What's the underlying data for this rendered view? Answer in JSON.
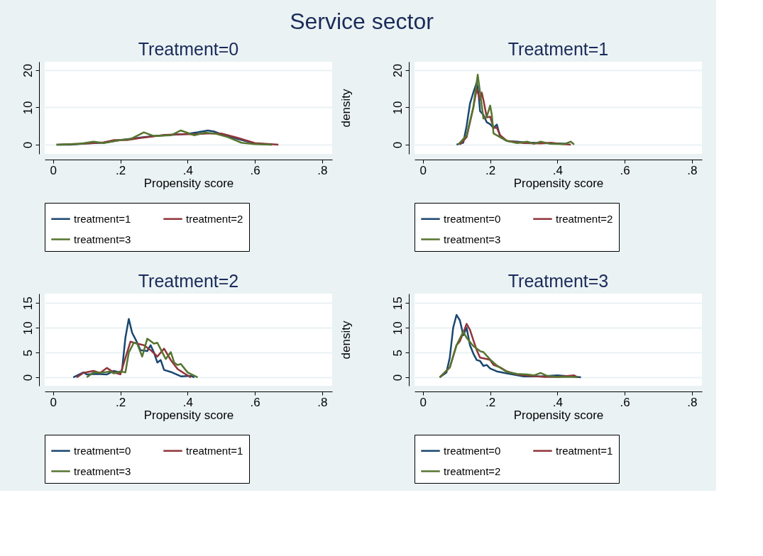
{
  "chart_data": [
    {
      "type": "other",
      "title": "Service sector"
    },
    {
      "type": "line",
      "title": "Treatment=0",
      "xlabel": "Propensity score",
      "xlim": [
        -0.025,
        0.83
      ],
      "xticks": [
        {
          "value": 0,
          "label": "0"
        },
        {
          "value": 0.2,
          "label": ".2"
        },
        {
          "value": 0.4,
          "label": ".4"
        },
        {
          "value": 0.6,
          "label": ".6"
        },
        {
          "value": 0.8,
          "label": ".8"
        }
      ],
      "ylim": [
        -2.5,
        22.3
      ],
      "yticks": [
        0,
        10,
        20
      ],
      "grid": "y",
      "legend": "bottom",
      "marker": "none",
      "line_style": "solid",
      "series": [
        {
          "name": "treatment=1",
          "color": "#1a476f",
          "x": [
            0.01,
            0.05,
            0.1,
            0.15,
            0.2,
            0.25,
            0.3,
            0.35,
            0.4,
            0.43,
            0.46,
            0.48,
            0.5,
            0.55,
            0.6,
            0.65
          ],
          "values": [
            0,
            0,
            0.3,
            0.5,
            1.2,
            1.8,
            2.3,
            2.6,
            2.9,
            3.3,
            3.8,
            3.5,
            2.8,
            1.5,
            0.3,
            0
          ]
        },
        {
          "name": "treatment=2",
          "color": "#90353b",
          "x": [
            0.02,
            0.1,
            0.15,
            0.18,
            0.22,
            0.26,
            0.3,
            0.33,
            0.38,
            0.42,
            0.46,
            0.5,
            0.55,
            0.6,
            0.67
          ],
          "values": [
            0,
            0.3,
            0.6,
            1.2,
            1.2,
            1.8,
            2.2,
            2.6,
            2.8,
            2.8,
            3,
            3,
            1.8,
            0.4,
            0
          ]
        },
        {
          "name": "treatment=3",
          "color": "#55752f",
          "x": [
            0.01,
            0.08,
            0.12,
            0.15,
            0.2,
            0.23,
            0.27,
            0.3,
            0.35,
            0.38,
            0.42,
            0.45,
            0.48,
            0.52,
            0.56,
            0.6,
            0.65
          ],
          "values": [
            0,
            0.2,
            0.8,
            0.4,
            1.2,
            1.5,
            3.3,
            2.3,
            2.5,
            3.8,
            2.5,
            3.2,
            3,
            2,
            0.5,
            0.1,
            0
          ]
        }
      ]
    },
    {
      "type": "line",
      "title": "Treatment=1",
      "xlabel": "Propensity score",
      "ylabel": "density",
      "xlim": [
        -0.025,
        0.83
      ],
      "xticks": [
        {
          "value": 0,
          "label": "0"
        },
        {
          "value": 0.2,
          "label": ".2"
        },
        {
          "value": 0.4,
          "label": ".4"
        },
        {
          "value": 0.6,
          "label": ".6"
        },
        {
          "value": 0.8,
          "label": ".8"
        }
      ],
      "ylim": [
        -2.5,
        22.3
      ],
      "yticks": [
        0,
        10,
        20
      ],
      "grid": "y",
      "legend": "bottom",
      "marker": "none",
      "line_style": "solid",
      "series": [
        {
          "name": "treatment=0",
          "color": "#1a476f",
          "x": [
            0.1,
            0.12,
            0.13,
            0.14,
            0.15,
            0.16,
            0.165,
            0.17,
            0.18,
            0.19,
            0.2,
            0.21,
            0.22,
            0.23,
            0.25,
            0.28,
            0.3,
            0.35,
            0.4,
            0.43
          ],
          "values": [
            0,
            0.5,
            5,
            11,
            14,
            16.7,
            14,
            9,
            8,
            6,
            5.5,
            4.5,
            5.4,
            2,
            1,
            0.8,
            0.6,
            0.4,
            0.3,
            0.2
          ]
        },
        {
          "name": "treatment=2",
          "color": "#90353b",
          "x": [
            0.11,
            0.13,
            0.15,
            0.16,
            0.17,
            0.175,
            0.18,
            0.19,
            0.2,
            0.21,
            0.22,
            0.23,
            0.25,
            0.3,
            0.35,
            0.38,
            0.42,
            0.44
          ],
          "values": [
            0,
            2,
            10,
            15,
            12,
            14,
            12,
            7.3,
            7.5,
            4.5,
            4.5,
            2.5,
            1,
            0.4,
            0.3,
            0.5,
            0.1,
            0
          ]
        },
        {
          "name": "treatment=3",
          "color": "#55752f",
          "x": [
            0.105,
            0.13,
            0.15,
            0.163,
            0.17,
            0.18,
            0.19,
            0.2,
            0.205,
            0.21,
            0.22,
            0.25,
            0.28,
            0.31,
            0.33,
            0.35,
            0.38,
            0.42,
            0.44,
            0.45
          ],
          "values": [
            0,
            2.5,
            10,
            18.8,
            14,
            7,
            7.5,
            10.5,
            8,
            3,
            2.5,
            1,
            0.4,
            0.8,
            0.2,
            0.8,
            0.2,
            0.1,
            0.8,
            0
          ]
        }
      ]
    },
    {
      "type": "line",
      "title": "Treatment=2",
      "xlabel": "Propensity score",
      "xlim": [
        -0.025,
        0.83
      ],
      "xticks": [
        {
          "value": 0,
          "label": "0"
        },
        {
          "value": 0.2,
          "label": ".2"
        },
        {
          "value": 0.4,
          "label": ".4"
        },
        {
          "value": 0.6,
          "label": ".6"
        },
        {
          "value": 0.8,
          "label": ".8"
        }
      ],
      "ylim": [
        -1.7,
        16.9
      ],
      "yticks": [
        0,
        5,
        10,
        15
      ],
      "grid": "y",
      "legend": "bottom",
      "marker": "none",
      "line_style": "solid",
      "series": [
        {
          "name": "treatment=0",
          "color": "#1a476f",
          "x": [
            0.06,
            0.09,
            0.1,
            0.13,
            0.16,
            0.18,
            0.2,
            0.205,
            0.215,
            0.225,
            0.235,
            0.245,
            0.26,
            0.28,
            0.29,
            0.3,
            0.31,
            0.32,
            0.33,
            0.35,
            0.38,
            0.41,
            0.42
          ],
          "values": [
            0,
            1,
            0.6,
            0.7,
            0.6,
            1.3,
            1,
            1.5,
            8,
            11.8,
            9,
            7.7,
            5.5,
            5.3,
            6.5,
            5,
            3,
            3.5,
            1.5,
            1.1,
            0.2,
            0.3,
            0
          ]
        },
        {
          "name": "treatment=1",
          "color": "#90353b",
          "x": [
            0.07,
            0.09,
            0.12,
            0.14,
            0.16,
            0.18,
            0.2,
            0.22,
            0.23,
            0.25,
            0.27,
            0.29,
            0.31,
            0.33,
            0.35,
            0.37,
            0.39,
            0.41
          ],
          "values": [
            0,
            0.9,
            1.3,
            0.9,
            1.9,
            1,
            0.6,
            5,
            7.2,
            6.8,
            6.5,
            5.5,
            4.2,
            5.8,
            3.5,
            1.7,
            0.8,
            0
          ]
        },
        {
          "name": "treatment=3",
          "color": "#55752f",
          "x": [
            0.1,
            0.12,
            0.15,
            0.17,
            0.18,
            0.2,
            0.215,
            0.225,
            0.24,
            0.25,
            0.265,
            0.28,
            0.3,
            0.31,
            0.325,
            0.335,
            0.35,
            0.36,
            0.37,
            0.38,
            0.4,
            0.43
          ],
          "values": [
            0,
            1,
            1,
            1.2,
            0.8,
            1.2,
            1,
            5,
            7,
            6.8,
            4.2,
            7.8,
            6.8,
            7,
            5,
            3.7,
            5.1,
            3,
            2.5,
            2.7,
            1,
            0
          ]
        }
      ]
    },
    {
      "type": "line",
      "title": "Treatment=3",
      "xlabel": "Propensity score",
      "ylabel": "density",
      "xlim": [
        -0.025,
        0.83
      ],
      "xticks": [
        {
          "value": 0,
          "label": "0"
        },
        {
          "value": 0.2,
          "label": ".2"
        },
        {
          "value": 0.4,
          "label": ".4"
        },
        {
          "value": 0.6,
          "label": ".6"
        },
        {
          "value": 0.8,
          "label": ".8"
        }
      ],
      "ylim": [
        -1.7,
        16.9
      ],
      "yticks": [
        0,
        5,
        10,
        15
      ],
      "grid": "y",
      "legend": "bottom",
      "marker": "none",
      "line_style": "solid",
      "series": [
        {
          "name": "treatment=0",
          "color": "#1a476f",
          "x": [
            0.05,
            0.07,
            0.08,
            0.09,
            0.1,
            0.11,
            0.12,
            0.13,
            0.14,
            0.15,
            0.16,
            0.17,
            0.18,
            0.19,
            0.2,
            0.22,
            0.25,
            0.3,
            0.35,
            0.4,
            0.44,
            0.47
          ],
          "values": [
            0,
            1,
            4,
            10,
            12.6,
            11.5,
            8.5,
            10,
            6.5,
            4.8,
            3.5,
            3.3,
            2.3,
            2.5,
            1.8,
            1.2,
            0.8,
            0.2,
            0.2,
            0.4,
            0.2,
            0
          ]
        },
        {
          "name": "treatment=1",
          "color": "#90353b",
          "x": [
            0.05,
            0.08,
            0.1,
            0.11,
            0.12,
            0.13,
            0.14,
            0.15,
            0.16,
            0.17,
            0.19,
            0.2,
            0.21,
            0.23,
            0.25,
            0.28,
            0.32,
            0.36,
            0.4,
            0.45,
            0.46
          ],
          "values": [
            0,
            2,
            6.5,
            7.3,
            9,
            10.8,
            9.6,
            7.5,
            5.5,
            4,
            3.7,
            3.5,
            2.5,
            2,
            1.2,
            0.6,
            0.3,
            0.1,
            0.1,
            0.4,
            0
          ]
        },
        {
          "name": "treatment=2",
          "color": "#55752f",
          "x": [
            0.05,
            0.08,
            0.1,
            0.12,
            0.13,
            0.15,
            0.17,
            0.18,
            0.2,
            0.22,
            0.25,
            0.28,
            0.31,
            0.33,
            0.35,
            0.37,
            0.4,
            0.45,
            0.46
          ],
          "values": [
            0,
            2,
            6.5,
            9.2,
            8,
            6.3,
            5.3,
            5.1,
            3.6,
            2.4,
            1.1,
            0.7,
            0.6,
            0.4,
            0.9,
            0.3,
            0.1,
            0.1,
            0
          ]
        }
      ]
    }
  ]
}
